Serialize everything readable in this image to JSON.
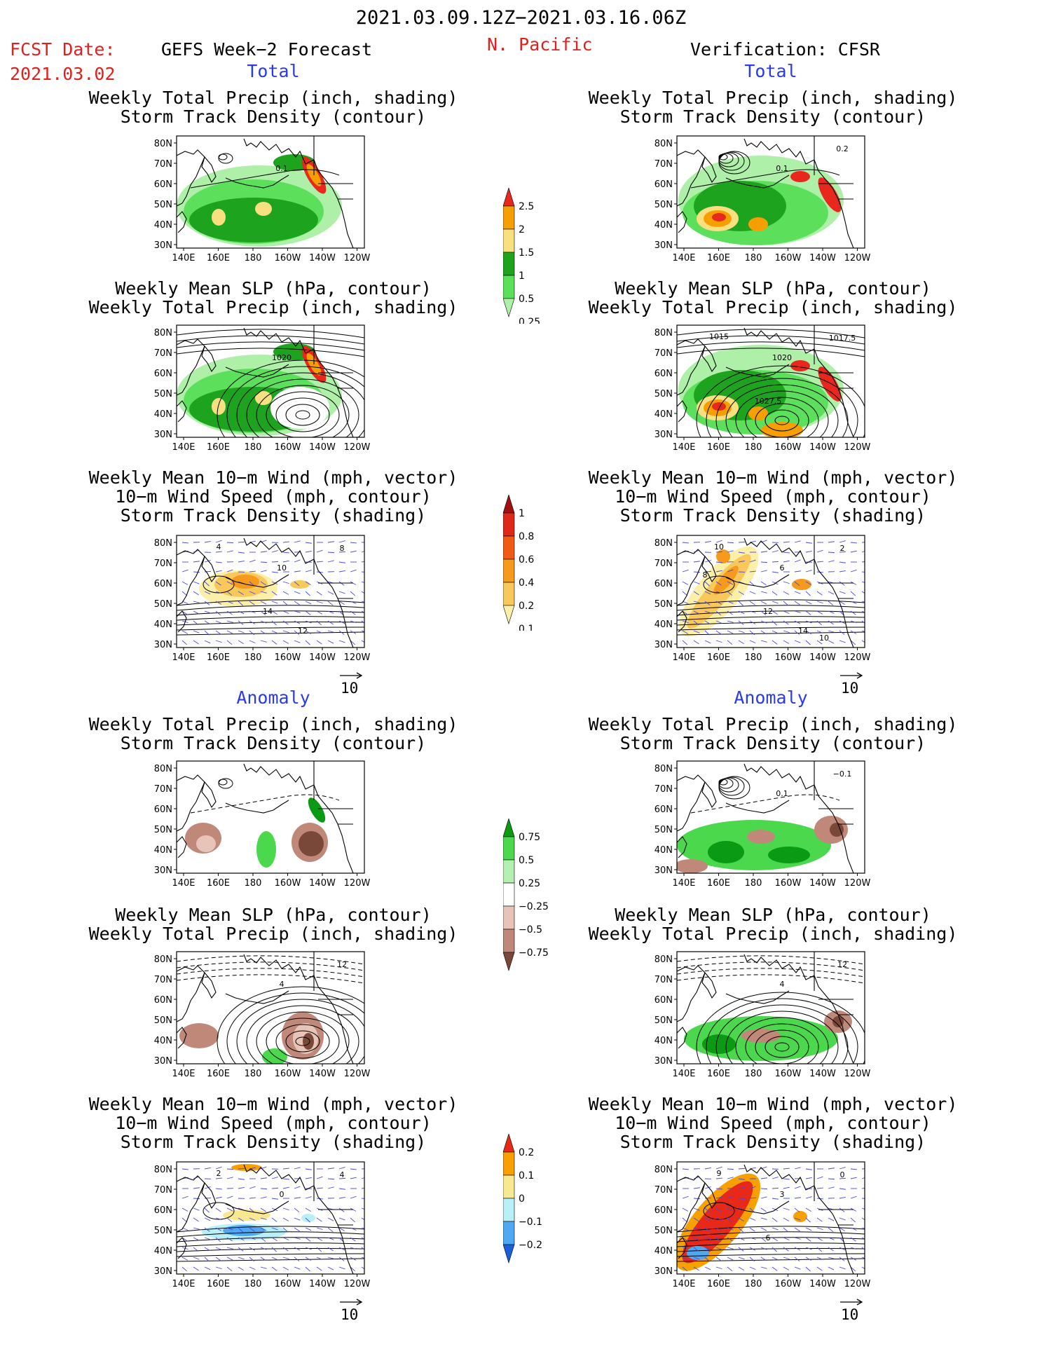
{
  "header": {
    "date_range": "2021.03.09.12Z−2021.03.16.06Z",
    "fcst_label": "FCST Date:",
    "fcst_date": "2021.03.02",
    "left_title": "GEFS Week−2 Forecast",
    "region": "N. Pacific",
    "right_title": "Verification: CFSR"
  },
  "sections": {
    "total": "Total",
    "anomaly": "Anomaly"
  },
  "panel_titles": {
    "precip_storm": [
      "Weekly Total Precip (inch, shading)",
      "Storm Track Density (contour)"
    ],
    "slp_precip": [
      "Weekly Mean SLP (hPa, contour)",
      "Weekly Total Precip (inch, shading)"
    ],
    "wind_storm": [
      "Weekly Mean 10−m Wind (mph, vector)",
      "10−m Wind Speed (mph, contour)",
      "Storm Track Density (shading)"
    ]
  },
  "axes": {
    "lon_ticks": [
      "140E",
      "160E",
      "180",
      "160W",
      "140W",
      "120W"
    ],
    "lat_ticks": [
      "80N",
      "70N",
      "60N",
      "50N",
      "40N",
      "30N"
    ]
  },
  "vector_ref": "10",
  "colorbars": {
    "precip_total": {
      "labels": [
        "2.5",
        "2",
        "1.5",
        "1",
        "0.5",
        "0.25"
      ],
      "colors": [
        "#e8281c",
        "#f5a000",
        "#f8e080",
        "#1ea31e",
        "#5ce05c",
        "#aef0a8"
      ]
    },
    "storm_total": {
      "labels": [
        "1",
        "0.8",
        "0.6",
        "0.4",
        "0.2",
        "0.1"
      ],
      "colors": [
        "#a01010",
        "#e02818",
        "#f05a14",
        "#f59a1c",
        "#f8c85a",
        "#fcf0a8"
      ]
    },
    "precip_anom": {
      "labels": [
        "0.75",
        "0.5",
        "0.25",
        "−0.25",
        "−0.5",
        "−0.75"
      ],
      "colors": [
        "#0a9a14",
        "#4cd84c",
        "#b4f0b0",
        "#ffffff",
        "#e8c4b8",
        "#c08878",
        "#7a4838"
      ]
    },
    "storm_anom": {
      "labels": [
        "0.2",
        "0.1",
        "0",
        "−0.1",
        "−0.2"
      ],
      "colors": [
        "#e82818",
        "#f8a000",
        "#f8e890",
        "#b8f0f8",
        "#50a8f0",
        "#1860d8"
      ]
    }
  },
  "contour_labels": {
    "fc_total_precip": [
      "0.1"
    ],
    "vf_total_precip": [
      "0.1",
      "0.2"
    ],
    "fc_total_slp": [
      "1020"
    ],
    "vf_total_slp": [
      "1020",
      "1017.5",
      "1015",
      "1027.5"
    ],
    "fc_total_wind": [
      "10",
      "8",
      "4",
      "14",
      "12"
    ],
    "vf_total_wind": [
      "6",
      "2",
      "10",
      "12",
      "14",
      "8",
      "10"
    ],
    "vf_anom_precip": [
      "0.1",
      "−0.1"
    ],
    "fc_anom_slp": [
      "4",
      "12"
    ],
    "vf_anom_slp": [
      "4",
      "12"
    ],
    "fc_anom_wind": [
      "0",
      "4",
      "2"
    ],
    "vf_anom_wind": [
      "3",
      "0",
      "9",
      "6"
    ]
  },
  "chart_data": [
    {
      "type": "heatmap",
      "title": "Weekly Total Precip (inch, shading) / Storm Track Density (contour)",
      "source": "GEFS Week-2 Forecast",
      "section": "Total",
      "xlim": [
        "140E",
        "120W"
      ],
      "ylim": [
        "30N",
        "80N"
      ]
    },
    {
      "type": "heatmap",
      "title": "Weekly Total Precip (inch, shading) / Storm Track Density (contour)",
      "source": "Verification: CFSR",
      "section": "Total",
      "xlim": [
        "140E",
        "120W"
      ],
      "ylim": [
        "30N",
        "80N"
      ]
    },
    {
      "type": "heatmap",
      "title": "Weekly Mean SLP (hPa, contour) / Weekly Total Precip (inch, shading)",
      "source": "GEFS Week-2 Forecast",
      "section": "Total",
      "contour_labels": [
        "1020"
      ]
    },
    {
      "type": "heatmap",
      "title": "Weekly Mean SLP (hPa, contour) / Weekly Total Precip (inch, shading)",
      "source": "Verification: CFSR",
      "section": "Total",
      "contour_labels": [
        "1020",
        "1017.5",
        "1015",
        "1027.5"
      ]
    },
    {
      "type": "heatmap",
      "title": "Weekly Mean 10-m Wind / 10-m Wind Speed / Storm Track Density",
      "source": "GEFS Week-2 Forecast",
      "section": "Total"
    },
    {
      "type": "heatmap",
      "title": "Weekly Mean 10-m Wind / 10-m Wind Speed / Storm Track Density",
      "source": "Verification: CFSR",
      "section": "Total"
    },
    {
      "type": "heatmap",
      "title": "Weekly Total Precip (inch, shading) / Storm Track Density (contour)",
      "source": "GEFS Week-2 Forecast",
      "section": "Anomaly"
    },
    {
      "type": "heatmap",
      "title": "Weekly Total Precip (inch, shading) / Storm Track Density (contour)",
      "source": "Verification: CFSR",
      "section": "Anomaly"
    },
    {
      "type": "heatmap",
      "title": "Weekly Mean SLP (hPa, contour) / Weekly Total Precip (inch, shading)",
      "source": "GEFS Week-2 Forecast",
      "section": "Anomaly"
    },
    {
      "type": "heatmap",
      "title": "Weekly Mean SLP (hPa, contour) / Weekly Total Precip (inch, shading)",
      "source": "Verification: CFSR",
      "section": "Anomaly"
    },
    {
      "type": "heatmap",
      "title": "Weekly Mean 10-m Wind / 10-m Wind Speed / Storm Track Density",
      "source": "GEFS Week-2 Forecast",
      "section": "Anomaly"
    },
    {
      "type": "heatmap",
      "title": "Weekly Mean 10-m Wind / 10-m Wind Speed / Storm Track Density",
      "source": "Verification: CFSR",
      "section": "Anomaly"
    }
  ]
}
